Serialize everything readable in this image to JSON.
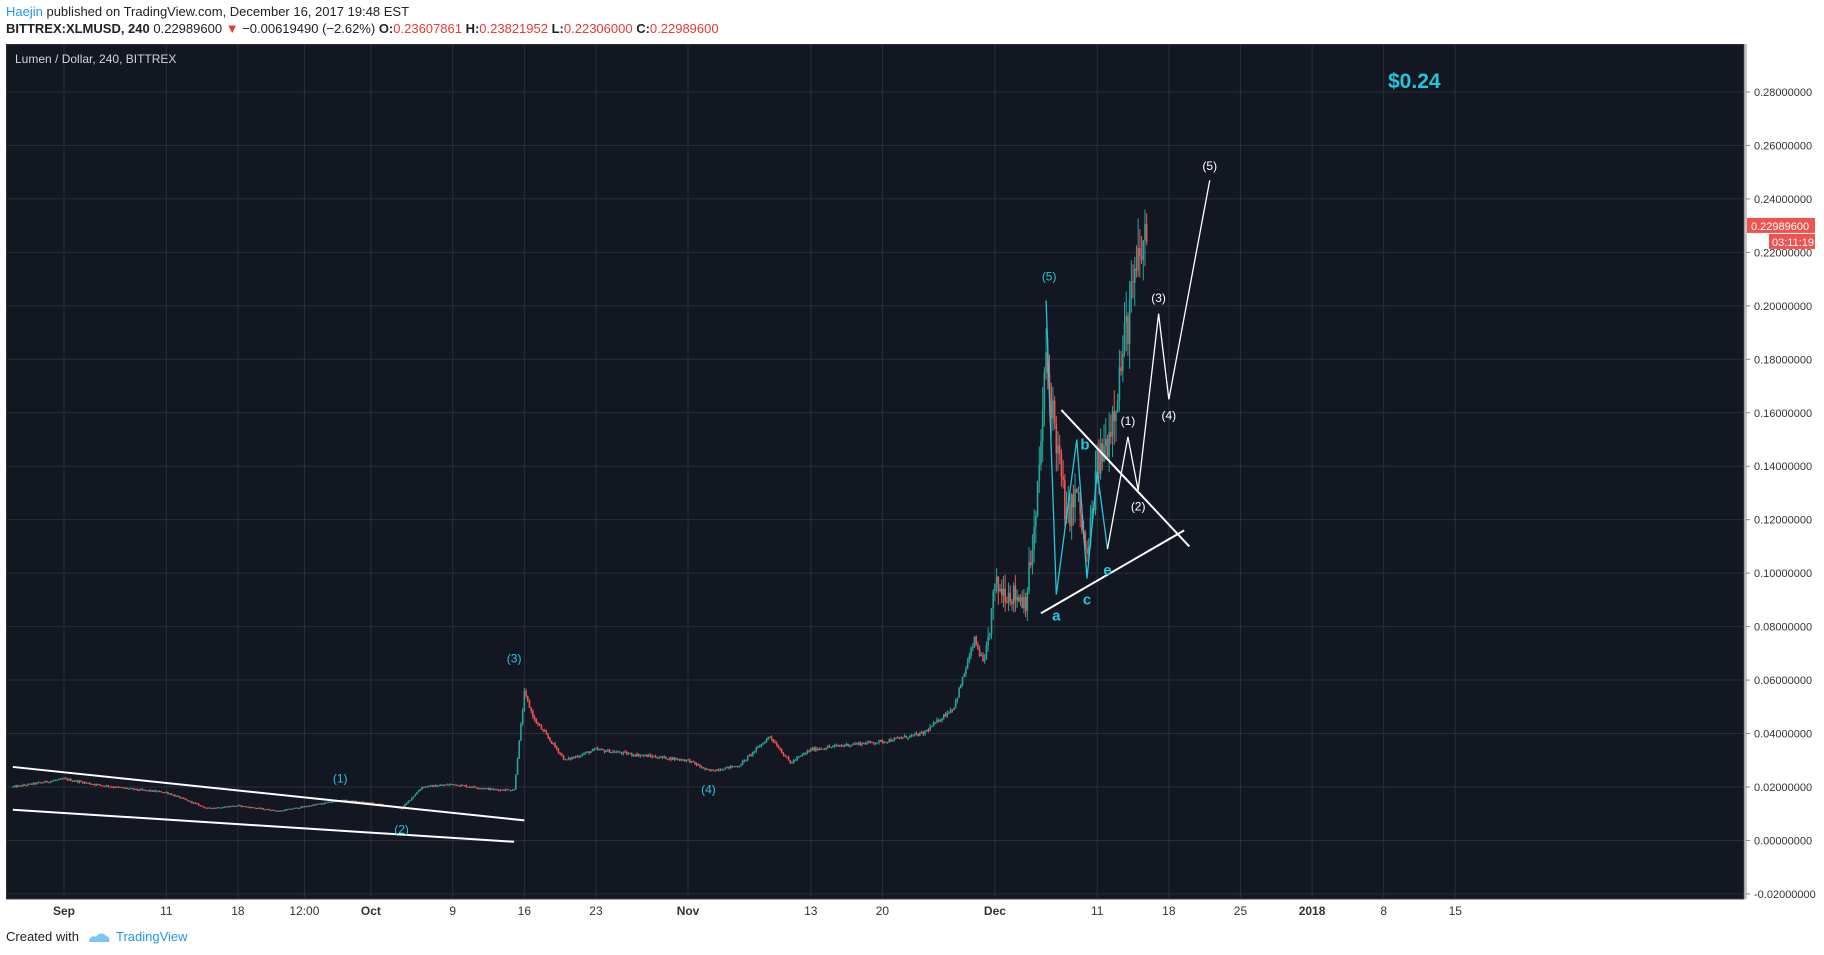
{
  "header": {
    "author": "Haejin",
    "published_text": " published on TradingView.com, December 16, 2017 19:48 EST"
  },
  "quote": {
    "symbol": "BITTREX:XLMUSD, 240",
    "price": "0.22989600",
    "arrow": "▼",
    "change": "−0.00619490 (−2.62%)",
    "o_label": "O:",
    "o_value": "0.23607861",
    "h_label": "H:",
    "h_value": "0.23821952",
    "l_label": "L:",
    "l_value": "0.22306000",
    "c_label": "C:",
    "c_value": "0.22989600"
  },
  "footer": {
    "created_with": "Created with",
    "brand": "TradingView"
  },
  "chart_data": {
    "type": "candlestick",
    "title": "Lumen / Dollar, 240, BITTREX",
    "ylim": [
      -0.03,
      0.285
    ],
    "y_ticks": [
      "0.28000000",
      "0.26000000",
      "0.24000000",
      "0.22000000",
      "0.20000000",
      "0.18000000",
      "0.16000000",
      "0.14000000",
      "0.12000000",
      "0.10000000",
      "0.08000000",
      "0.06000000",
      "0.04000000",
      "0.02000000",
      "0.00000000",
      "-0.02000000"
    ],
    "x_ticks": [
      "Sep",
      "11",
      "18",
      "12:00",
      "Oct",
      "9",
      "16",
      "23",
      "Nov",
      "13",
      "20",
      "Dec",
      "11",
      "18",
      "25",
      "2018",
      "8",
      "15"
    ],
    "last_price_label": "0.22989600",
    "countdown_label": "03:11:19",
    "target_text": "$0.24",
    "price_path": [
      [
        "Aug 27",
        0.02
      ],
      [
        "Sep 1",
        0.023
      ],
      [
        "Sep 4",
        0.021
      ],
      [
        "Sep 8",
        0.019
      ],
      [
        "Sep 11",
        0.018
      ],
      [
        "Sep 15",
        0.012
      ],
      [
        "Sep 18",
        0.013
      ],
      [
        "Sep 22",
        0.011
      ],
      [
        "Sep 25",
        0.013
      ],
      [
        "Sep 28",
        0.015
      ],
      [
        "Oct 1",
        0.014
      ],
      [
        "Oct 4",
        0.012
      ],
      [
        "Oct 6",
        0.02
      ],
      [
        "Oct 9",
        0.021
      ],
      [
        "Oct 13",
        0.019
      ],
      [
        "Oct 15",
        0.019
      ],
      [
        "Oct 16",
        0.055
      ],
      [
        "Oct 17",
        0.045
      ],
      [
        "Oct 20",
        0.03
      ],
      [
        "Oct 23",
        0.034
      ],
      [
        "Oct 27",
        0.032
      ],
      [
        "Nov 1",
        0.03
      ],
      [
        "Nov 3",
        0.026
      ],
      [
        "Nov 6",
        0.028
      ],
      [
        "Nov 9",
        0.039
      ],
      [
        "Nov 11",
        0.029
      ],
      [
        "Nov 13",
        0.034
      ],
      [
        "Nov 17",
        0.036
      ],
      [
        "Nov 20",
        0.037
      ],
      [
        "Nov 24",
        0.04
      ],
      [
        "Nov 27",
        0.05
      ],
      [
        "Nov 29",
        0.075
      ],
      [
        "Nov 30",
        0.065
      ],
      [
        "Dec 1",
        0.095
      ],
      [
        "Dec 4",
        0.09
      ],
      [
        "Dec 5",
        0.12
      ],
      [
        "Dec 6",
        0.18
      ],
      [
        "Dec 7",
        0.15
      ],
      [
        "Dec 8",
        0.12
      ],
      [
        "Dec 9",
        0.13
      ],
      [
        "Dec 10",
        0.105
      ],
      [
        "Dec 11",
        0.14
      ],
      [
        "Dec 12",
        0.15
      ],
      [
        "Dec 13",
        0.17
      ],
      [
        "Dec 14",
        0.195
      ],
      [
        "Dec 15",
        0.215
      ],
      [
        "Dec 16",
        0.229896
      ]
    ],
    "annotations": {
      "cyan_waves": [
        {
          "label": "(1)",
          "date": "Sep 28",
          "value": 0.016
        },
        {
          "label": "(2)",
          "date": "Oct 4",
          "value": 0.012
        },
        {
          "label": "(3)",
          "date": "Oct 16",
          "value": 0.061
        },
        {
          "label": "(4)",
          "date": "Nov 3",
          "value": 0.025
        },
        {
          "label": "(5)",
          "date": "Dec 6",
          "value": 0.202
        }
      ],
      "triangle_points": [
        {
          "label": "a",
          "date": "Dec 7",
          "value": 0.092
        },
        {
          "label": "b",
          "date": "Dec 9",
          "value": 0.15
        },
        {
          "label": "c",
          "date": "Dec 10",
          "value": 0.098
        },
        {
          "label": "e",
          "date": "Dec 12",
          "value": 0.109
        }
      ],
      "projection_waves": [
        {
          "label": "(1)",
          "date": "Dec 14",
          "value": 0.151
        },
        {
          "label": "(2)",
          "date": "Dec 15",
          "value": 0.131
        },
        {
          "label": "(3)",
          "date": "Dec 17",
          "value": 0.197
        },
        {
          "label": "(4)",
          "date": "Dec 18",
          "value": 0.165
        },
        {
          "label": "(5)",
          "date": "Dec 22",
          "value": 0.247
        }
      ]
    }
  }
}
